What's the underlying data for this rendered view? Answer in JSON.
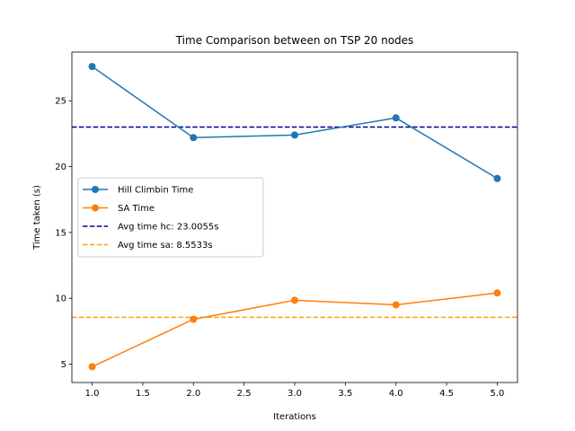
{
  "chart_data": {
    "type": "line",
    "title": "Time Comparison between on TSP 20 nodes",
    "xlabel": "Iterations",
    "ylabel": "Time taken (s)",
    "xlim": [
      0.8,
      5.2
    ],
    "ylim": [
      3.6,
      28.7
    ],
    "xticks": [
      1.0,
      1.5,
      2.0,
      2.5,
      3.0,
      3.5,
      4.0,
      4.5,
      5.0
    ],
    "xtick_labels": [
      "1.0",
      "1.5",
      "2.0",
      "2.5",
      "3.0",
      "3.5",
      "4.0",
      "4.5",
      "5.0"
    ],
    "yticks": [
      5,
      10,
      15,
      20,
      25
    ],
    "ytick_labels": [
      "5",
      "10",
      "15",
      "20",
      "25"
    ],
    "grid": false,
    "legend_position": "center-left",
    "x": [
      1,
      2,
      3,
      4,
      5
    ],
    "series": [
      {
        "name": "Hill Climbin Time",
        "values": [
          27.6,
          22.2,
          22.4,
          23.7,
          19.1
        ],
        "color": "#1f77b4",
        "style": "line-marker"
      },
      {
        "name": "SA Time",
        "values": [
          4.8,
          8.4,
          9.85,
          9.5,
          10.4
        ],
        "color": "#ff7f0e",
        "style": "line-marker"
      }
    ],
    "hlines": [
      {
        "name": "Avg time hc: 23.0055s",
        "y": 23.0055,
        "color": "#00008b",
        "style": "dashed"
      },
      {
        "name": "Avg time sa: 8.5533s",
        "y": 8.5533,
        "color": "#ffa500",
        "style": "dashed"
      }
    ]
  }
}
